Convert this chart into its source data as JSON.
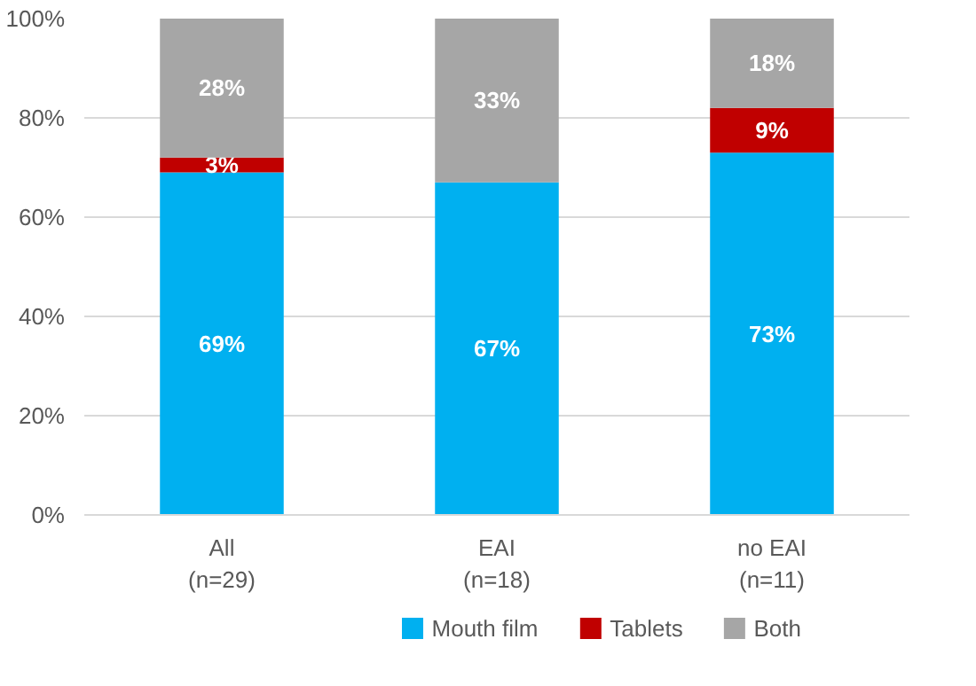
{
  "chart_data": {
    "type": "bar",
    "stacked": true,
    "categories": [
      "All\n(n=29)",
      "EAI\n(n=18)",
      "no EAI\n(n=11)"
    ],
    "series": [
      {
        "name": "Mouth film",
        "color": "#00b0f0",
        "values": [
          69,
          67,
          73
        ],
        "value_labels": [
          "69%",
          "67%",
          "73%"
        ]
      },
      {
        "name": "Tablets",
        "color": "#c00000",
        "values": [
          3,
          0,
          9
        ],
        "value_labels": [
          "3%",
          null,
          "9%"
        ]
      },
      {
        "name": "Both",
        "color": "#a6a6a6",
        "values": [
          28,
          33,
          18
        ],
        "value_labels": [
          "28%",
          "33%",
          "18%"
        ]
      }
    ],
    "ylim": [
      0,
      100
    ],
    "yticks": [
      {
        "value": 0,
        "label": "0%"
      },
      {
        "value": 20,
        "label": "20%"
      },
      {
        "value": 40,
        "label": "40%"
      },
      {
        "value": 60,
        "label": "60%"
      },
      {
        "value": 80,
        "label": "80%"
      },
      {
        "value": 100,
        "label": "100%"
      }
    ],
    "grid": "y",
    "legend": "bottom"
  }
}
